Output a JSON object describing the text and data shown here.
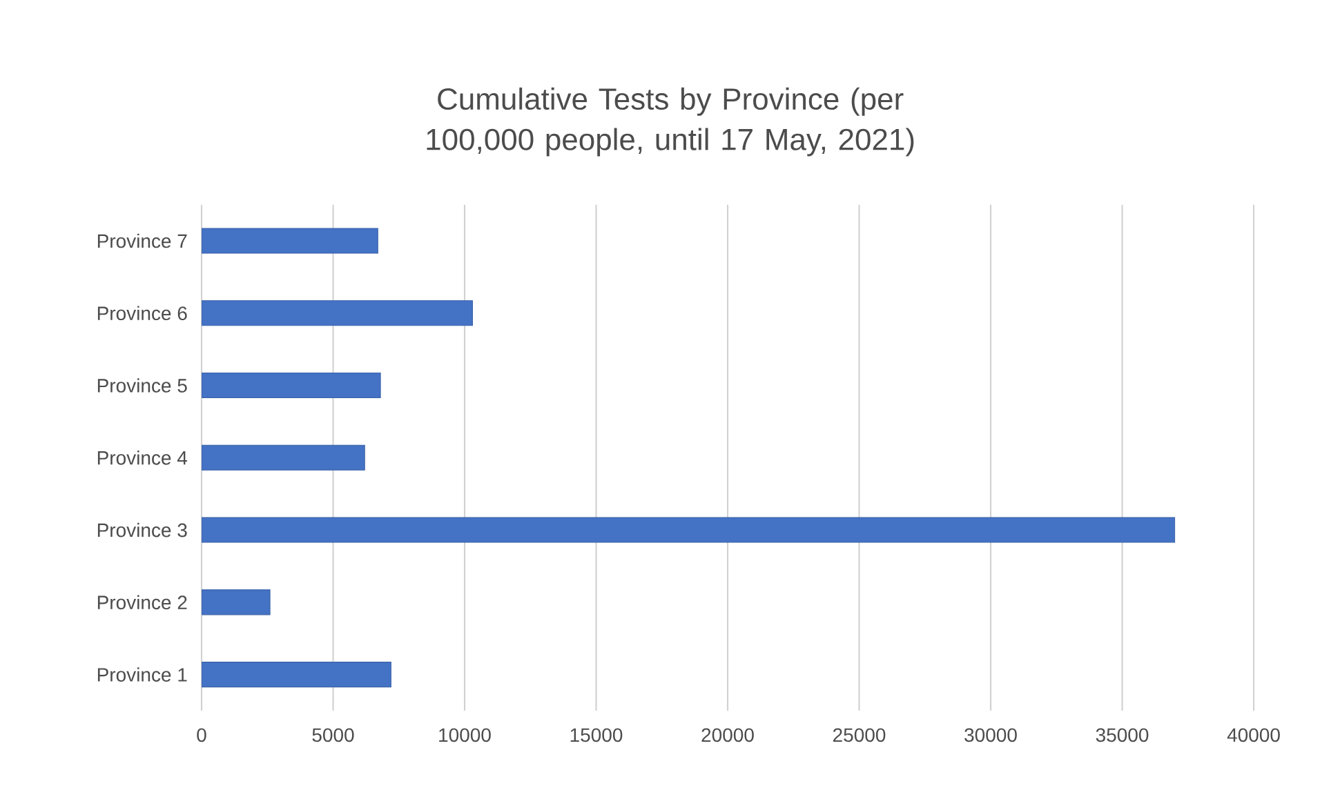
{
  "chart_data": {
    "type": "bar",
    "orientation": "horizontal",
    "title": "Cumulative Tests by Province (per 100,000 people, until 17 May, 2021)",
    "categories": [
      "Province 7",
      "Province 6",
      "Province 5",
      "Province 4",
      "Province 3",
      "Province 2",
      "Province 1"
    ],
    "values": [
      6700,
      10300,
      6800,
      6200,
      37000,
      2600,
      7200
    ],
    "color": "#4472c4",
    "xlim": [
      0,
      40000
    ],
    "xticks": [
      0,
      5000,
      10000,
      15000,
      20000,
      25000,
      30000,
      35000,
      40000
    ],
    "grid": "x"
  }
}
